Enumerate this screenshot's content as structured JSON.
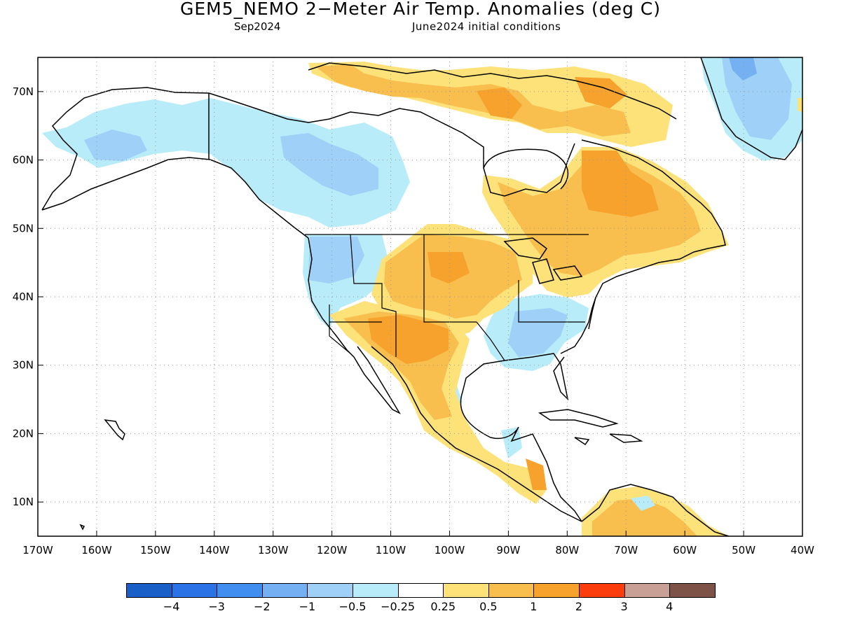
{
  "header": {
    "title": "GEM5_NEMO 2−Meter Air Temp. Anomalies (deg C)",
    "valid_month": "Sep2024",
    "init": "June2024 initial conditions"
  },
  "map": {
    "lat_labels": [
      "70N",
      "60N",
      "50N",
      "40N",
      "30N",
      "20N",
      "10N"
    ],
    "lon_labels": [
      "170W",
      "160W",
      "150W",
      "140W",
      "130W",
      "120W",
      "110W",
      "100W",
      "90W",
      "80W",
      "70W",
      "60W",
      "50W",
      "40W"
    ],
    "lon_range": [
      -170,
      -40
    ],
    "lat_range": [
      5,
      75
    ]
  },
  "legend": {
    "colors": [
      "#1a5fc8",
      "#2a72e6",
      "#3f8ef0",
      "#74b0f2",
      "#9fd0f7",
      "#b8ecf8",
      "#ffffff",
      "#fde27a",
      "#f8be4e",
      "#f6a22c",
      "#fb3c0c",
      "#c9a096",
      "#7e5347"
    ],
    "labels": [
      "−4",
      "−3",
      "−2",
      "−1",
      "−0.5",
      "−0.25",
      "0.25",
      "0.5",
      "1",
      "2",
      "3",
      "4"
    ]
  }
}
